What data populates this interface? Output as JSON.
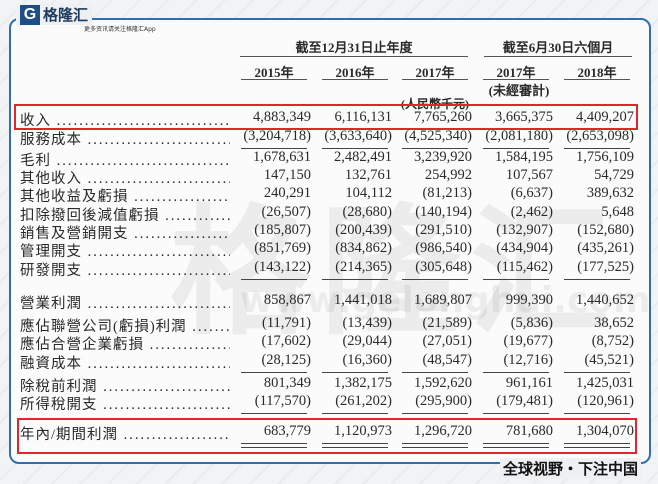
{
  "logo": {
    "mark": "G",
    "name": "格隆汇",
    "tagline": "更多资讯请关注格隆汇App"
  },
  "watermark": {
    "text": "格隆汇",
    "url": "www.gelonghui.com"
  },
  "header": {
    "group1": "截至12月31日止年度",
    "group2": "截至6月30日六個月",
    "years": [
      "2015年",
      "2016年",
      "2017年",
      "2017年",
      "2018年"
    ],
    "unaudited": "(未經審計)",
    "unit": "(人民幣千元)"
  },
  "rows": [
    {
      "label": "收入",
      "values": [
        "4,883,349",
        "6,116,131",
        "7,765,260",
        "3,665,375",
        "4,409,207"
      ]
    },
    {
      "label": "服務成本",
      "values": [
        "(3,204,718)",
        "(3,633,640)",
        "(4,525,340)",
        "(2,081,180)",
        "(2,653,098)"
      ]
    },
    {
      "label": "毛利",
      "values": [
        "1,678,631",
        "2,482,491",
        "3,239,920",
        "1,584,195",
        "1,756,109"
      ]
    },
    {
      "label": "其他收入",
      "values": [
        "147,150",
        "132,761",
        "254,992",
        "107,567",
        "54,729"
      ]
    },
    {
      "label": "其他收益及虧損",
      "values": [
        "240,291",
        "104,112",
        "(81,213)",
        "(6,637)",
        "389,632"
      ]
    },
    {
      "label": "扣除撥回後減值虧損",
      "values": [
        "(26,507)",
        "(28,680)",
        "(140,194)",
        "(2,462)",
        "5,648"
      ]
    },
    {
      "label": "銷售及營銷開支",
      "values": [
        "(185,807)",
        "(200,439)",
        "(291,510)",
        "(132,907)",
        "(152,680)"
      ]
    },
    {
      "label": "管理開支",
      "values": [
        "(851,769)",
        "(834,862)",
        "(986,540)",
        "(434,904)",
        "(435,261)"
      ]
    },
    {
      "label": "研發開支",
      "values": [
        "(143,122)",
        "(214,365)",
        "(305,648)",
        "(115,462)",
        "(177,525)"
      ]
    },
    {
      "label": "營業利潤",
      "values": [
        "858,867",
        "1,441,018",
        "1,689,807",
        "999,390",
        "1,440,652"
      ]
    },
    {
      "label": "應佔聯營公司(虧損)利潤",
      "values": [
        "(11,791)",
        "(13,439)",
        "(21,589)",
        "(5,836)",
        "38,652"
      ]
    },
    {
      "label": "應佔合營企業虧損",
      "values": [
        "(17,602)",
        "(29,044)",
        "(27,051)",
        "(19,677)",
        "(8,752)"
      ]
    },
    {
      "label": "融資成本",
      "values": [
        "(28,125)",
        "(16,360)",
        "(48,547)",
        "(12,716)",
        "(45,521)"
      ]
    },
    {
      "label": "除稅前利潤",
      "values": [
        "801,349",
        "1,382,175",
        "1,592,620",
        "961,161",
        "1,425,031"
      ]
    },
    {
      "label": "所得稅開支",
      "values": [
        "(117,570)",
        "(261,202)",
        "(295,900)",
        "(179,481)",
        "(120,961)"
      ]
    },
    {
      "label": "年內/期間利潤",
      "values": [
        "683,779",
        "1,120,973",
        "1,296,720",
        "781,680",
        "1,304,070"
      ]
    }
  ],
  "highlight_color": "#e0262b",
  "frame_color": "#2d6fb0",
  "slogan": "全球视野・下注中国"
}
